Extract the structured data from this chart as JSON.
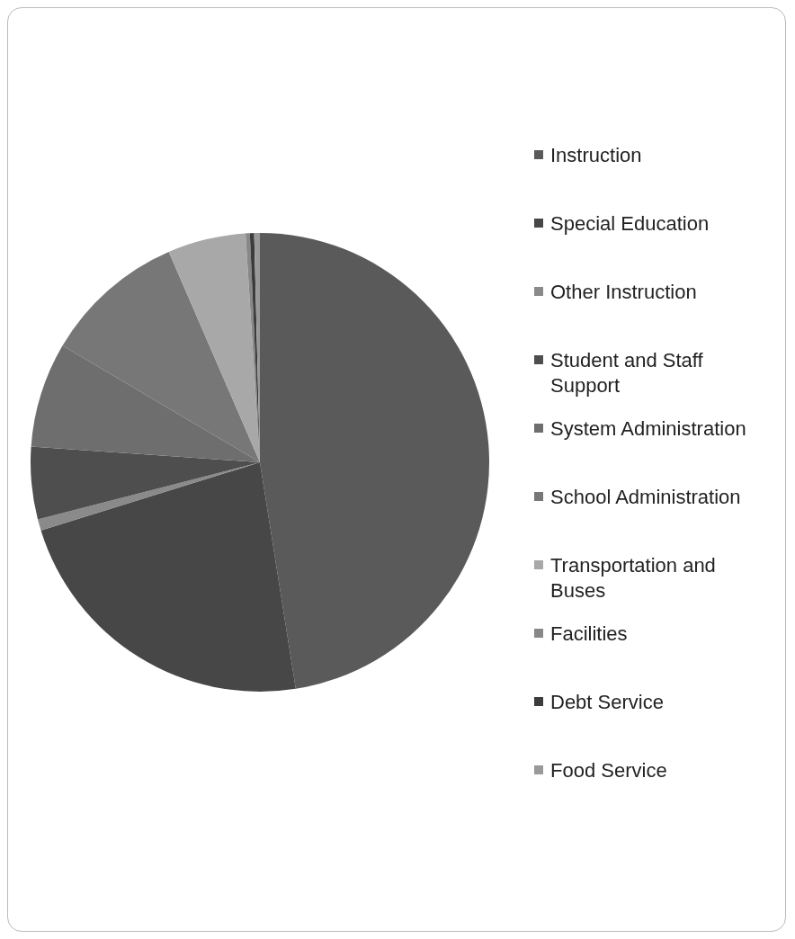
{
  "chart_data": {
    "type": "pie",
    "categories": [
      "Instruction",
      "Special Education",
      "Other Instruction",
      "Student and Staff Support",
      "System Administration",
      "School Administration",
      "Transportation and Buses",
      "Facilities",
      "Debt Service",
      "Food Service"
    ],
    "values": [
      47.5,
      22.7,
      0.8,
      5.1,
      7.4,
      10,
      5.5,
      0.3,
      0.3,
      0.4
    ],
    "colors": [
      "#5a5a5a",
      "#474747",
      "#8a8a8a",
      "#4e4e4e",
      "#6e6e6e",
      "#777777",
      "#a8a8a8",
      "#888888",
      "#3c3c3c",
      "#999999"
    ],
    "legend": "right"
  }
}
